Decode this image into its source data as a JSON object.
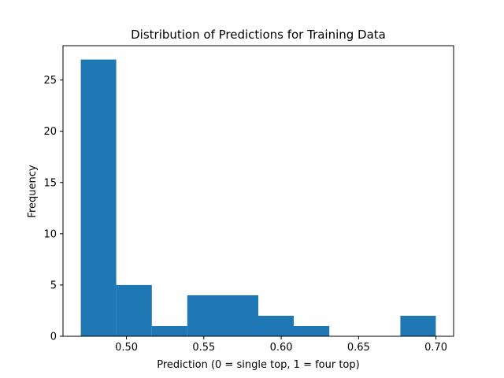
{
  "chart_data": {
    "type": "bar",
    "subtype": "histogram",
    "title": "Distribution of Predictions for Training Data",
    "xlabel": "Prediction (0 = single top, 1 = four top)",
    "ylabel": "Frequency",
    "bin_edges": [
      0.4705,
      0.4934,
      0.5164,
      0.5393,
      0.5623,
      0.5852,
      0.6081,
      0.6311,
      0.654,
      0.677,
      0.6999
    ],
    "values": [
      27,
      5,
      1,
      4,
      4,
      2,
      1,
      0,
      0,
      2
    ],
    "xlim": [
      0.459,
      0.7114
    ],
    "ylim": [
      0,
      28.35
    ],
    "xticks": [
      0.5,
      0.55,
      0.6,
      0.65,
      0.7
    ],
    "xtick_labels": [
      "0.50",
      "0.55",
      "0.60",
      "0.65",
      "0.70"
    ],
    "yticks": [
      0,
      5,
      10,
      15,
      20,
      25
    ],
    "ytick_labels": [
      "0",
      "5",
      "10",
      "15",
      "20",
      "25"
    ],
    "bar_color": "#1f77b4",
    "grid": false,
    "legend": "none"
  }
}
